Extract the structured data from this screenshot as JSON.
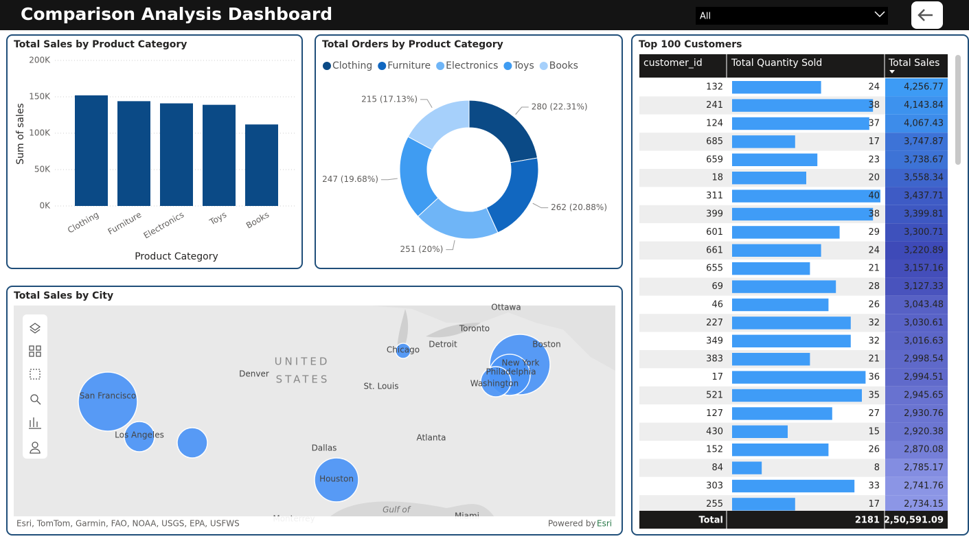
{
  "header": {
    "title": "Comparison Analysis Dashboard",
    "filter": "All"
  },
  "chart_data": [
    {
      "type": "bar",
      "title": "Total Sales by Product Category",
      "categories": [
        "Clothing",
        "Furniture",
        "Electronics",
        "Toys",
        "Books"
      ],
      "values": [
        152000,
        144000,
        141000,
        139000,
        112000
      ],
      "color": "#0b4a86",
      "x_label": "Product Category",
      "y_label": "Sum of sales",
      "ylim": [
        0,
        200000
      ],
      "yticks": [
        {
          "value": 0,
          "label": "0K"
        },
        {
          "value": 50000,
          "label": "50K"
        },
        {
          "value": 100000,
          "label": "100K"
        },
        {
          "value": 150000,
          "label": "150K"
        },
        {
          "value": 200000,
          "label": "200K"
        }
      ],
      "grid": true
    },
    {
      "type": "donut",
      "title": "Total Orders by Product Category",
      "categories": [
        "Clothing",
        "Furniture",
        "Electronics",
        "Toys",
        "Books"
      ],
      "values": [
        280,
        262,
        251,
        247,
        215
      ],
      "value_labels": [
        "280 (22.31%)",
        "262 (20.88%)",
        "251 (20%)",
        "247 (19.68%)",
        "215 (17.13%)"
      ],
      "colors": [
        "#0b4a86",
        "#1167c0",
        "#6fb5f7",
        "#3f9cf2",
        "#a6d0fb"
      ],
      "legend": "top"
    }
  ],
  "map": {
    "title": "Total Sales by City",
    "labels": [
      "Ottawa",
      "Toronto",
      "Detroit",
      "Chicago",
      "Boston",
      "New York",
      "Philadelphia",
      "Washington",
      "UNITED",
      "STATES",
      "Denver",
      "St. Louis",
      "San Francisco",
      "Los Angeles",
      "Dallas",
      "Houston",
      "Atlanta",
      "Gulf of",
      "Monterrey",
      "Miami"
    ],
    "attribution": "Esri, TomTom, Garmin, FAO, NOAA, USGS, EPA, USFWS",
    "powered": "Powered by",
    "esri": "Esri"
  },
  "table": {
    "title": "Top 100 Customers",
    "columns": [
      "customer_id",
      "Total Quantity Sold",
      "Total Sales"
    ],
    "customer_id": [
      132,
      241,
      124,
      685,
      659,
      18,
      311,
      399,
      601,
      661,
      655,
      69,
      46,
      227,
      349,
      383,
      17,
      521,
      127,
      430,
      152,
      84,
      303,
      255
    ],
    "quantity": [
      24,
      38,
      37,
      17,
      23,
      20,
      40,
      38,
      29,
      24,
      21,
      28,
      26,
      32,
      32,
      21,
      36,
      35,
      27,
      15,
      26,
      8,
      33,
      17
    ],
    "sales": [
      4256.77,
      4143.84,
      4067.43,
      3747.87,
      3738.67,
      3558.34,
      3437.71,
      3399.81,
      3300.71,
      3220.89,
      3157.16,
      3127.33,
      3043.48,
      3030.61,
      3016.63,
      2998.54,
      2994.51,
      2945.65,
      2930.76,
      2920.38,
      2870.08,
      2785.17,
      2741.76,
      2734.15
    ],
    "sales_labels": [
      "4,256.77",
      "4,143.84",
      "4,067.43",
      "3,747.87",
      "3,738.67",
      "3,558.34",
      "3,437.71",
      "3,399.81",
      "3,300.71",
      "3,220.89",
      "3,157.16",
      "3,127.33",
      "3,043.48",
      "3,030.61",
      "3,016.63",
      "2,998.54",
      "2,994.51",
      "2,945.65",
      "2,930.76",
      "2,920.38",
      "2,870.08",
      "2,785.17",
      "2,741.76",
      "2,734.15"
    ],
    "total_label": "Total",
    "total_quantity": 2181,
    "total_sales": "2,50,591.09"
  }
}
